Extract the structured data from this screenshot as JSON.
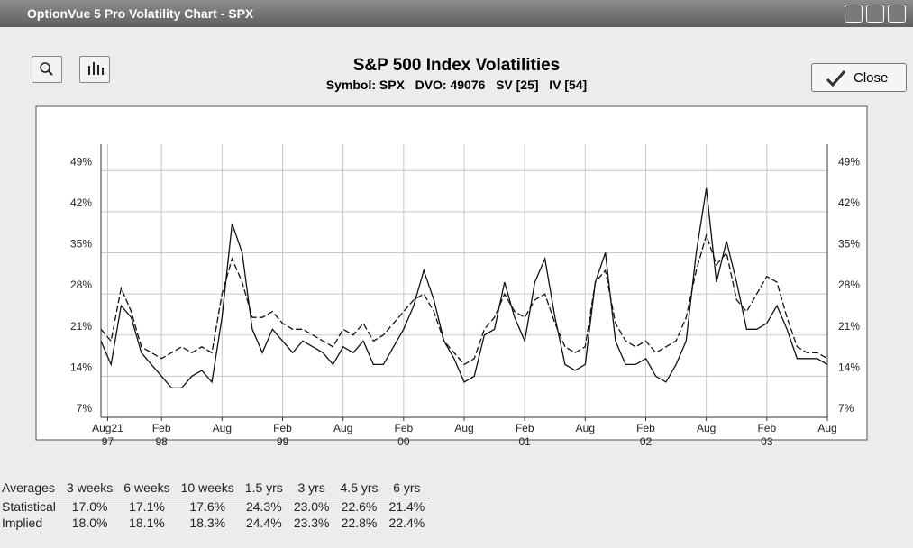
{
  "window": {
    "title": "OptionVue 5 Pro Volatility Chart - SPX"
  },
  "close_button": "Close",
  "chart_data": {
    "type": "line",
    "title": "S&P 500 Index Volatilities",
    "subtitle": "Symbol: SPX   DVO: 49076   SV [25]   IV [54]",
    "x": [
      "1997-08",
      "1997-09",
      "1997-10",
      "1997-11",
      "1997-12",
      "1998-01",
      "1998-02",
      "1998-03",
      "1998-04",
      "1998-05",
      "1998-06",
      "1998-07",
      "1998-08",
      "1998-09",
      "1998-10",
      "1998-11",
      "1998-12",
      "1999-01",
      "1999-02",
      "1999-03",
      "1999-04",
      "1999-05",
      "1999-06",
      "1999-07",
      "1999-08",
      "1999-09",
      "1999-10",
      "1999-11",
      "1999-12",
      "2000-01",
      "2000-02",
      "2000-03",
      "2000-04",
      "2000-05",
      "2000-06",
      "2000-07",
      "2000-08",
      "2000-09",
      "2000-10",
      "2000-11",
      "2000-12",
      "2001-01",
      "2001-02",
      "2001-03",
      "2001-04",
      "2001-05",
      "2001-06",
      "2001-07",
      "2001-08",
      "2001-09",
      "2001-10",
      "2001-11",
      "2001-12",
      "2002-01",
      "2002-02",
      "2002-03",
      "2002-04",
      "2002-05",
      "2002-06",
      "2002-07",
      "2002-08",
      "2002-09",
      "2002-10",
      "2002-11",
      "2002-12",
      "2003-01",
      "2003-02",
      "2003-03",
      "2003-04",
      "2003-05",
      "2003-06",
      "2003-07",
      "2003-08"
    ],
    "series": [
      {
        "name": "Statistical",
        "color": "#111111",
        "dash": false,
        "values": [
          20,
          16,
          26,
          24,
          18,
          16,
          14,
          12,
          12,
          14,
          15,
          13,
          24,
          40,
          35,
          22,
          18,
          22,
          20,
          18,
          20,
          19,
          18,
          16,
          19,
          18,
          20,
          16,
          16,
          19,
          22,
          26,
          32,
          27,
          20,
          17,
          13,
          14,
          21,
          22,
          30,
          24,
          20,
          30,
          34,
          24,
          16,
          15,
          16,
          30,
          35,
          20,
          16,
          16,
          17,
          14,
          13,
          16,
          20,
          35,
          46,
          30,
          37,
          30,
          22,
          22,
          23,
          26,
          22,
          17,
          17,
          17,
          16
        ]
      },
      {
        "name": "Implied",
        "color": "#111111",
        "dash": true,
        "values": [
          22,
          20,
          29,
          25,
          19,
          18,
          17,
          18,
          19,
          18,
          19,
          18,
          28,
          34,
          30,
          24,
          24,
          25,
          23,
          22,
          22,
          21,
          20,
          19,
          22,
          21,
          23,
          20,
          21,
          23,
          25,
          27,
          28,
          25,
          20,
          18,
          16,
          17,
          22,
          24,
          28,
          25,
          24,
          27,
          28,
          23,
          19,
          18,
          19,
          30,
          32,
          23,
          20,
          19,
          20,
          18,
          19,
          20,
          24,
          32,
          38,
          33,
          35,
          27,
          25,
          28,
          31,
          30,
          24,
          19,
          18,
          18,
          17
        ]
      }
    ],
    "xlim": [
      "1997-08",
      "2003-08"
    ],
    "xticks": [
      {
        "value": "1997-08-21",
        "label": [
          "Aug21",
          "97"
        ]
      },
      {
        "value": "1998-02",
        "label": [
          "Feb",
          "98"
        ]
      },
      {
        "value": "1998-08",
        "label": [
          "Aug"
        ]
      },
      {
        "value": "1999-02",
        "label": [
          "Feb",
          "99"
        ]
      },
      {
        "value": "1999-08",
        "label": [
          "Aug"
        ]
      },
      {
        "value": "2000-02",
        "label": [
          "Feb",
          "00"
        ]
      },
      {
        "value": "2000-08",
        "label": [
          "Aug"
        ]
      },
      {
        "value": "2001-02",
        "label": [
          "Feb",
          "01"
        ]
      },
      {
        "value": "2001-08",
        "label": [
          "Aug"
        ]
      },
      {
        "value": "2002-02",
        "label": [
          "Feb",
          "02"
        ]
      },
      {
        "value": "2002-08",
        "label": [
          "Aug"
        ]
      },
      {
        "value": "2003-02",
        "label": [
          "Feb",
          "03"
        ]
      },
      {
        "value": "2003-08",
        "label": [
          "Aug"
        ]
      }
    ],
    "ylim": [
      7,
      53.5
    ],
    "yticks": [
      {
        "value": 7,
        "label": "7%"
      },
      {
        "value": 14,
        "label": "14%"
      },
      {
        "value": 21,
        "label": "21%"
      },
      {
        "value": 28,
        "label": "28%"
      },
      {
        "value": 35,
        "label": "35%"
      },
      {
        "value": 42,
        "label": "42%"
      },
      {
        "value": 49,
        "label": "49%"
      }
    ],
    "grid": true
  },
  "averages": {
    "header": [
      "Averages",
      "3 weeks",
      "6 weeks",
      "10 weeks",
      "1.5 yrs",
      "3 yrs",
      "4.5 yrs",
      "6 yrs"
    ],
    "rows": [
      [
        "Statistical",
        "17.0%",
        "17.1%",
        "17.6%",
        "24.3%",
        "23.0%",
        "22.6%",
        "21.4%"
      ],
      [
        "Implied",
        "18.0%",
        "18.1%",
        "18.3%",
        "24.4%",
        "23.3%",
        "22.8%",
        "22.4%"
      ]
    ]
  }
}
